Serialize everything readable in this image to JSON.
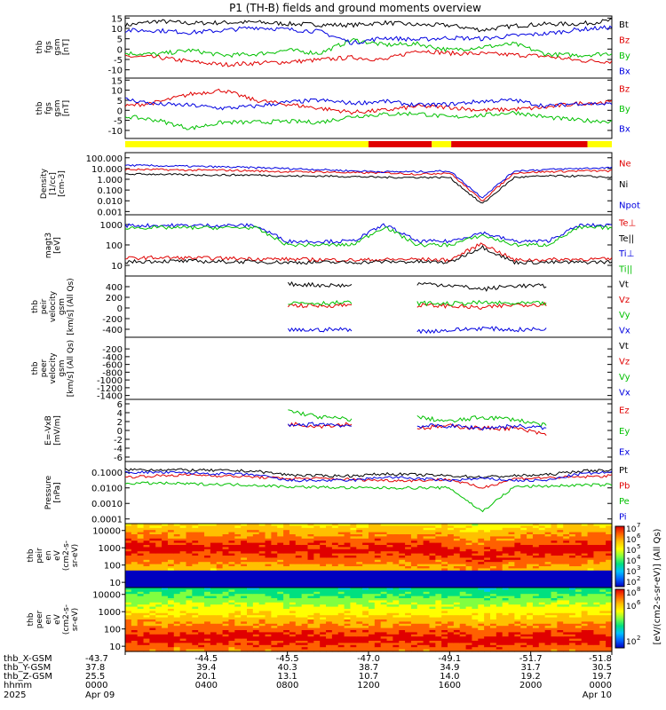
{
  "chart_data": {
    "type": "line",
    "title": "P1 (TH-B) fields and ground moments overview",
    "panels": [
      {
        "id": "fgs",
        "ylabel": [
          "thb",
          "fgs",
          "gsm",
          "[nT]"
        ],
        "ylim": [
          -14,
          16
        ],
        "yticks": [
          "15",
          "10",
          "5",
          "0",
          "-5",
          "-10"
        ],
        "ytick_values": [
          15,
          10,
          5,
          0,
          -5,
          -10
        ],
        "series": [
          {
            "name": "Bt",
            "color": "#000000",
            "values": [
              11.5,
              13.5,
              12.5,
              12.8,
              13.0,
              12.2,
              11.8,
              11.6,
              12.8,
              11.7,
              11.5,
              9.2,
              11.3,
              12.1,
              12.2,
              13.8
            ]
          },
          {
            "name": "Bz",
            "color": "#e00000",
            "values": [
              -3.5,
              -4.0,
              -6.0,
              -7.5,
              -6.8,
              -6.2,
              -5.2,
              -4.0,
              -5.2,
              -0.5,
              -2.0,
              -2.2,
              -2.8,
              -3.5,
              -5.5,
              -6.0
            ]
          },
          {
            "name": "By",
            "color": "#00c000",
            "values": [
              -2.0,
              -2.5,
              -0.5,
              -3.0,
              -2.5,
              -0.5,
              -2.0,
              4.5,
              2.0,
              2.5,
              -0.5,
              1.0,
              2.5,
              -2.5,
              -3.0,
              -2.0
            ]
          },
          {
            "name": "Bx",
            "color": "#0000e0",
            "values": [
              9.0,
              9.0,
              8.0,
              9.0,
              10.5,
              9.5,
              8.5,
              3.0,
              5.5,
              4.5,
              5.5,
              5.0,
              6.5,
              7.5,
              9.5,
              10.5
            ]
          }
        ]
      },
      {
        "id": "fgs-gsm",
        "ylabel": [
          "thb",
          "fgs",
          "gsm",
          "[nT]"
        ],
        "ylim": [
          -14,
          16
        ],
        "yticks": [
          "15",
          "10",
          "5",
          "0",
          "-5",
          "-10"
        ],
        "ytick_values": [
          15,
          10,
          5,
          0,
          -5,
          -10
        ],
        "series": [
          {
            "name": "Bz",
            "color": "#e00000",
            "values": [
              2.0,
              4.0,
              8.0,
              10.0,
              5.0,
              3.0,
              1.0,
              -1.0,
              0.0,
              2.0,
              1.5,
              0.0,
              0.5,
              1.5,
              3.5,
              4.0
            ]
          },
          {
            "name": "By",
            "color": "#00c000",
            "values": [
              -3.0,
              -5.0,
              -9.0,
              -6.0,
              -6.0,
              -5.5,
              -6.0,
              -3.0,
              -2.0,
              -1.5,
              -3.5,
              -2.5,
              -1.0,
              -3.5,
              -5.0,
              -5.5
            ]
          },
          {
            "name": "Bx",
            "color": "#0000e0",
            "values": [
              5.5,
              3.0,
              2.5,
              1.0,
              2.0,
              4.0,
              5.0,
              3.5,
              4.5,
              2.5,
              3.0,
              4.5,
              5.0,
              2.0,
              3.5,
              3.0
            ]
          }
        ]
      },
      {
        "id": "density",
        "ylabel": [
          "Density",
          "[1/cc]",
          "[cm-3]"
        ],
        "log": true,
        "ylim": [
          0.0005,
          300
        ],
        "yticks": [
          "100.000",
          "10.000",
          "1.000",
          "0.100",
          "0.010",
          "0.001"
        ],
        "ytick_values": [
          100,
          10,
          1,
          0.1,
          0.01,
          0.001
        ],
        "series": [
          {
            "name": "Ne",
            "color": "#e00000",
            "values": [
              8,
              8,
              7,
              7,
              6,
              5,
              5,
              4,
              4,
              3,
              4,
              0.01,
              4,
              5,
              6,
              6
            ]
          },
          {
            "name": "Ni",
            "color": "#000000",
            "values": [
              3,
              3,
              2.5,
              2.5,
              2.5,
              2,
              2,
              1.8,
              1.5,
              1.5,
              1.5,
              0.005,
              1.5,
              2,
              2,
              1.5
            ]
          },
          {
            "name": "Npot",
            "color": "#0000e0",
            "values": [
              20,
              18,
              16,
              14,
              12,
              10,
              8,
              6,
              5,
              5,
              6,
              0.02,
              6,
              8,
              10,
              12
            ]
          }
        ]
      },
      {
        "id": "temperature",
        "ylabel": [
          "magt3",
          "[eV]"
        ],
        "log": true,
        "ylim": [
          3,
          3000
        ],
        "yticks": [
          "1000",
          "100",
          "10"
        ],
        "ytick_values": [
          1000,
          100,
          10
        ],
        "series": [
          {
            "name": "Te⊥",
            "color": "#e00000",
            "values": [
              22,
              24,
              23,
              22,
              21,
              20,
              19,
              18,
              19,
              20,
              18,
              120,
              18,
              19,
              20,
              20
            ]
          },
          {
            "name": "Te||",
            "color": "#000000",
            "values": [
              15,
              16,
              16,
              15,
              15,
              14,
              14,
              14,
              15,
              15,
              14,
              80,
              14,
              14,
              14,
              15
            ]
          },
          {
            "name": "Ti⊥",
            "color": "#0000e0",
            "values": [
              900,
              900,
              900,
              900,
              900,
              150,
              150,
              150,
              1000,
              150,
              150,
              400,
              150,
              150,
              900,
              900
            ]
          },
          {
            "name": "Ti||",
            "color": "#00c000",
            "values": [
              700,
              700,
              700,
              700,
              700,
              100,
              100,
              100,
              800,
              100,
              100,
              300,
              100,
              100,
              700,
              700
            ]
          }
        ]
      },
      {
        "id": "peir-velocity",
        "ylabel": [
          "thb",
          "peir",
          "velocity",
          "gsm",
          "[km/s] (All Qs)"
        ],
        "ylim": [
          -550,
          600
        ],
        "yticks": [
          "400",
          "200",
          "0",
          "-200",
          "-400"
        ],
        "ytick_values": [
          400,
          200,
          0,
          -200,
          -400
        ],
        "series": [
          {
            "name": "Vt",
            "color": "#000000",
            "values": [
              null,
              null,
              null,
              null,
              null,
              450,
              430,
              420,
              null,
              460,
              430,
              350,
              420,
              410,
              null,
              null
            ]
          },
          {
            "name": "Vz",
            "color": "#e00000",
            "values": [
              null,
              null,
              null,
              null,
              null,
              50,
              40,
              60,
              null,
              50,
              40,
              0,
              60,
              70,
              null,
              null
            ]
          },
          {
            "name": "Vy",
            "color": "#00c000",
            "values": [
              null,
              null,
              null,
              null,
              null,
              100,
              90,
              100,
              null,
              90,
              80,
              100,
              80,
              90,
              null,
              null
            ]
          },
          {
            "name": "Vx",
            "color": "#0000e0",
            "values": [
              null,
              null,
              null,
              null,
              null,
              -420,
              -410,
              -400,
              null,
              -440,
              -420,
              -380,
              -410,
              -400,
              null,
              null
            ]
          }
        ]
      },
      {
        "id": "peer-velocity",
        "ylabel": [
          "thb",
          "peer",
          "velocity",
          "gsm",
          "[km/s] (All Qs)"
        ],
        "ylim": [
          -1500,
          100
        ],
        "yticks": [
          "-200",
          "-400",
          "-600",
          "-800",
          "-1000",
          "-1200",
          "-1400"
        ],
        "ytick_values": [
          -200,
          -400,
          -600,
          -800,
          -1000,
          -1200,
          -1400
        ],
        "series": [
          {
            "name": "Vt",
            "color": "#000000",
            "values": []
          },
          {
            "name": "Vz",
            "color": "#e00000",
            "values": []
          },
          {
            "name": "Vy",
            "color": "#00c000",
            "values": []
          },
          {
            "name": "Vx",
            "color": "#0000e0",
            "values": []
          }
        ]
      },
      {
        "id": "efield",
        "ylabel": [
          "E=-VxB",
          "[mV/m]"
        ],
        "ylim": [
          -7,
          7
        ],
        "yticks": [
          "6",
          "4",
          "2",
          "0",
          "-2",
          "-4",
          "-6"
        ],
        "ytick_values": [
          6,
          4,
          2,
          0,
          -2,
          -4,
          -6
        ],
        "series": [
          {
            "name": "Ez",
            "color": "#e00000",
            "values": [
              null,
              null,
              null,
              null,
              null,
              1.5,
              1.0,
              1.5,
              null,
              0.5,
              1.0,
              0.5,
              0.5,
              -1.0,
              null,
              null
            ]
          },
          {
            "name": "Ey",
            "color": "#00c000",
            "values": [
              null,
              null,
              null,
              null,
              null,
              4.5,
              3.0,
              2.5,
              null,
              3.0,
              2.0,
              3.0,
              2.5,
              1.0,
              null,
              null
            ]
          },
          {
            "name": "Ex",
            "color": "#0000e0",
            "values": [
              null,
              null,
              null,
              null,
              null,
              1.0,
              1.5,
              1.0,
              null,
              1.0,
              1.0,
              0.5,
              1.0,
              0.5,
              null,
              null
            ]
          }
        ]
      },
      {
        "id": "pressure",
        "ylabel": [
          "Pressure",
          "[nPa]"
        ],
        "log": true,
        "ylim": [
          5e-05,
          0.5
        ],
        "yticks": [
          "0.1000",
          "0.0100",
          "0.0010",
          "0.0001"
        ],
        "ytick_values": [
          0.1,
          0.01,
          0.001,
          0.0001
        ],
        "series": [
          {
            "name": "Pt",
            "color": "#000000",
            "values": [
              0.15,
              0.15,
              0.14,
              0.13,
              0.12,
              0.07,
              0.06,
              0.06,
              0.08,
              0.07,
              0.06,
              0.05,
              0.06,
              0.07,
              0.12,
              0.14
            ]
          },
          {
            "name": "Pb",
            "color": "#e00000",
            "values": [
              0.05,
              0.06,
              0.07,
              0.06,
              0.05,
              0.04,
              0.04,
              0.035,
              0.03,
              0.03,
              0.035,
              0.01,
              0.04,
              0.045,
              0.05,
              0.06
            ]
          },
          {
            "name": "Pe",
            "color": "#00c000",
            "values": [
              0.02,
              0.02,
              0.018,
              0.017,
              0.015,
              0.012,
              0.011,
              0.01,
              0.01,
              0.01,
              0.01,
              0.0003,
              0.012,
              0.013,
              0.015,
              0.016
            ]
          },
          {
            "name": "Pi",
            "color": "#0000e0",
            "values": [
              0.1,
              0.1,
              0.09,
              0.08,
              0.07,
              0.03,
              0.03,
              0.03,
              0.05,
              0.04,
              0.03,
              0.04,
              0.03,
              0.03,
              0.08,
              0.1
            ]
          }
        ]
      }
    ],
    "spectrograms": [
      {
        "id": "peir",
        "type": "heatmap",
        "ylabel": [
          "thb",
          "peir",
          "en",
          "eV",
          "(cm2-s-",
          "sr-eV)"
        ],
        "yticks": [
          "10000",
          "1000",
          "100",
          "10"
        ],
        "peak_energy": [
          900,
          900,
          900,
          900,
          900,
          800,
          700,
          700,
          1000,
          700,
          700,
          300,
          700,
          700,
          900,
          900
        ]
      },
      {
        "id": "peer",
        "type": "heatmap",
        "ylabel": [
          "thb",
          "peer",
          "en",
          "eV",
          "(cm2-s-",
          "sr-eV)"
        ],
        "yticks": [
          "10000",
          "1000",
          "100",
          "10"
        ],
        "peak_energy": [
          30,
          30,
          30,
          30,
          30,
          25,
          25,
          25,
          30,
          25,
          25,
          20,
          25,
          25,
          30,
          30
        ]
      }
    ],
    "colorbar": {
      "label": "[eV/(cm2-s-sr-eV)] (All Qs)",
      "upper_ticks": [
        "10",
        "10",
        "10",
        "10",
        "10",
        "10"
      ],
      "upper_exponents": [
        "7",
        "6",
        "5",
        "4",
        "3",
        "2"
      ],
      "lower_ticks": [
        "10",
        "10",
        "10"
      ],
      "lower_exponents": [
        "8",
        "6",
        "2"
      ]
    },
    "legends": {
      "fgs": [
        "Bt",
        "Bz",
        "By",
        "Bx"
      ],
      "fgs_gsm": [
        "Bz",
        "By",
        "Bx"
      ],
      "density": [
        "Ne",
        "Ni",
        "Npot"
      ],
      "temperature": [
        "Te⊥",
        "Te||",
        "Ti⊥",
        "Ti||"
      ],
      "peir_velocity": [
        "Vt",
        "Vz",
        "Vy",
        "Vx"
      ],
      "peer_velocity": [
        "Vt",
        "Vz",
        "Vy",
        "Vx"
      ],
      "efield": [
        "Ez",
        "Ey",
        "Ex"
      ],
      "pressure": [
        "Pt",
        "Pb",
        "Pe",
        "Pi"
      ]
    },
    "mode_bar": [
      {
        "from": 0.0,
        "to": 0.5,
        "color": "#ffff00"
      },
      {
        "from": 0.5,
        "to": 0.63,
        "color": "#e00000"
      },
      {
        "from": 0.63,
        "to": 0.67,
        "color": "#ffff00"
      },
      {
        "from": 0.67,
        "to": 0.95,
        "color": "#e00000"
      },
      {
        "from": 0.95,
        "to": 1.0,
        "color": "#ffff00"
      }
    ],
    "xaxis": {
      "row_labels": [
        "thb_X-GSM",
        "thb_Y-GSM",
        "thb_Z-GSM",
        "hhmm",
        "2025"
      ],
      "ticks": [
        {
          "x": "-43.7",
          "y": "37.8",
          "z": "25.5",
          "hhmm": "0000",
          "date": "Apr 09"
        },
        {
          "x": "-44.5",
          "y": "39.4",
          "z": "20.1",
          "hhmm": "0400",
          "date": ""
        },
        {
          "x": "-45.5",
          "y": "40.3",
          "z": "13.1",
          "hhmm": "0800",
          "date": ""
        },
        {
          "x": "-47.0",
          "y": "38.7",
          "z": "10.7",
          "hhmm": "1200",
          "date": ""
        },
        {
          "x": "-49.1",
          "y": "34.9",
          "z": "14.0",
          "hhmm": "1600",
          "date": ""
        },
        {
          "x": "-51.7",
          "y": "31.7",
          "z": "19.2",
          "hhmm": "2000",
          "date": ""
        },
        {
          "x": "-51.8",
          "y": "30.5",
          "z": "19.7",
          "hhmm": "0000",
          "date": "Apr 10"
        }
      ]
    }
  }
}
